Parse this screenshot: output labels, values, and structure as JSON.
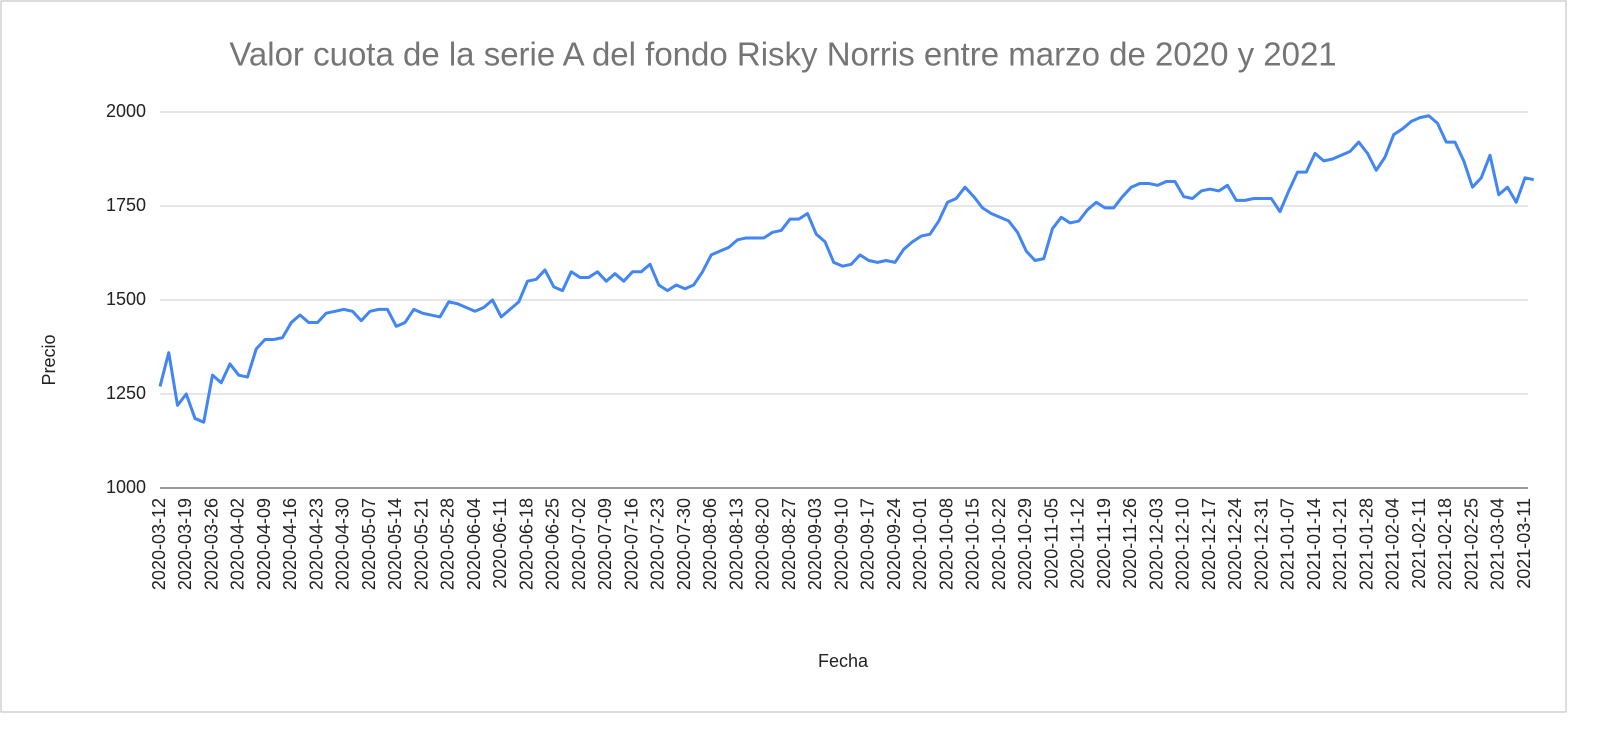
{
  "chart_data": {
    "type": "line",
    "title": "Valor cuota de la serie A del fondo Risky Norris entre marzo de 2020 y 2021",
    "x_label": "Fecha",
    "y_label": "Precio",
    "categories": [
      "2020-03-12",
      null,
      null,
      "2020-03-19",
      null,
      null,
      "2020-03-26",
      null,
      null,
      "2020-04-02",
      null,
      null,
      "2020-04-09",
      null,
      null,
      "2020-04-16",
      null,
      null,
      "2020-04-23",
      null,
      null,
      "2020-04-30",
      null,
      null,
      "2020-05-07",
      null,
      null,
      "2020-05-14",
      null,
      null,
      "2020-05-21",
      null,
      null,
      "2020-05-28",
      null,
      null,
      "2020-06-04",
      null,
      null,
      "2020-06-11",
      null,
      null,
      "2020-06-18",
      null,
      null,
      "2020-06-25",
      null,
      null,
      "2020-07-02",
      null,
      null,
      "2020-07-09",
      null,
      null,
      "2020-07-16",
      null,
      null,
      "2020-07-23",
      null,
      null,
      "2020-07-30",
      null,
      null,
      "2020-08-06",
      null,
      null,
      "2020-08-13",
      null,
      null,
      "2020-08-20",
      null,
      null,
      "2020-08-27",
      null,
      null,
      "2020-09-03",
      null,
      null,
      "2020-09-10",
      null,
      null,
      "2020-09-17",
      null,
      null,
      "2020-09-24",
      null,
      null,
      "2020-10-01",
      null,
      null,
      "2020-10-08",
      null,
      null,
      "2020-10-15",
      null,
      null,
      "2020-10-22",
      null,
      null,
      "2020-10-29",
      null,
      null,
      "2020-11-05",
      null,
      null,
      "2020-11-12",
      null,
      null,
      "2020-11-19",
      null,
      null,
      "2020-11-26",
      null,
      null,
      "2020-12-03",
      null,
      null,
      "2020-12-10",
      null,
      null,
      "2020-12-17",
      null,
      null,
      "2020-12-24",
      null,
      null,
      "2020-12-31",
      null,
      null,
      "2021-01-07",
      null,
      null,
      "2021-01-14",
      null,
      null,
      "2021-01-21",
      null,
      null,
      "2021-01-28",
      null,
      null,
      "2021-02-04",
      null,
      null,
      "2021-02-11",
      null,
      null,
      "2021-02-18",
      null,
      null,
      "2021-02-25",
      null,
      null,
      "2021-03-04",
      null,
      null,
      "2021-03-11",
      null
    ],
    "series": [
      {
        "name": "Precio",
        "color": "#4285f4",
        "values": [
          1270,
          1360,
          1220,
          1250,
          1185,
          1175,
          1300,
          1280,
          1330,
          1300,
          1295,
          1370,
          1395,
          1395,
          1400,
          1440,
          1460,
          1440,
          1440,
          1465,
          1470,
          1475,
          1470,
          1445,
          1470,
          1475,
          1475,
          1430,
          1440,
          1475,
          1465,
          1460,
          1455,
          1495,
          1490,
          1480,
          1470,
          1480,
          1500,
          1455,
          1475,
          1495,
          1550,
          1555,
          1580,
          1535,
          1525,
          1575,
          1560,
          1560,
          1575,
          1550,
          1570,
          1550,
          1575,
          1575,
          1595,
          1540,
          1525,
          1540,
          1530,
          1540,
          1575,
          1620,
          1630,
          1640,
          1660,
          1665,
          1665,
          1665,
          1680,
          1685,
          1715,
          1715,
          1730,
          1675,
          1655,
          1600,
          1590,
          1595,
          1620,
          1605,
          1600,
          1605,
          1600,
          1635,
          1655,
          1670,
          1675,
          1710,
          1760,
          1770,
          1800,
          1775,
          1745,
          1730,
          1720,
          1710,
          1680,
          1630,
          1605,
          1610,
          1690,
          1720,
          1705,
          1710,
          1740,
          1760,
          1745,
          1745,
          1775,
          1800,
          1810,
          1810,
          1805,
          1815,
          1815,
          1775,
          1770,
          1790,
          1795,
          1790,
          1805,
          1765,
          1765,
          1770,
          1770,
          1770,
          1735,
          1790,
          1840,
          1840,
          1890,
          1870,
          1875,
          1885,
          1895,
          1920,
          1890,
          1845,
          1880,
          1940,
          1955,
          1975,
          1985,
          1990,
          1970,
          1920,
          1920,
          1870,
          1800,
          1825,
          1885,
          1780,
          1800,
          1760,
          1825,
          1820
        ]
      }
    ],
    "ylim": [
      1000,
      2000
    ],
    "yticks": [
      1000,
      1250,
      1500,
      1750,
      2000
    ],
    "grid": true
  }
}
